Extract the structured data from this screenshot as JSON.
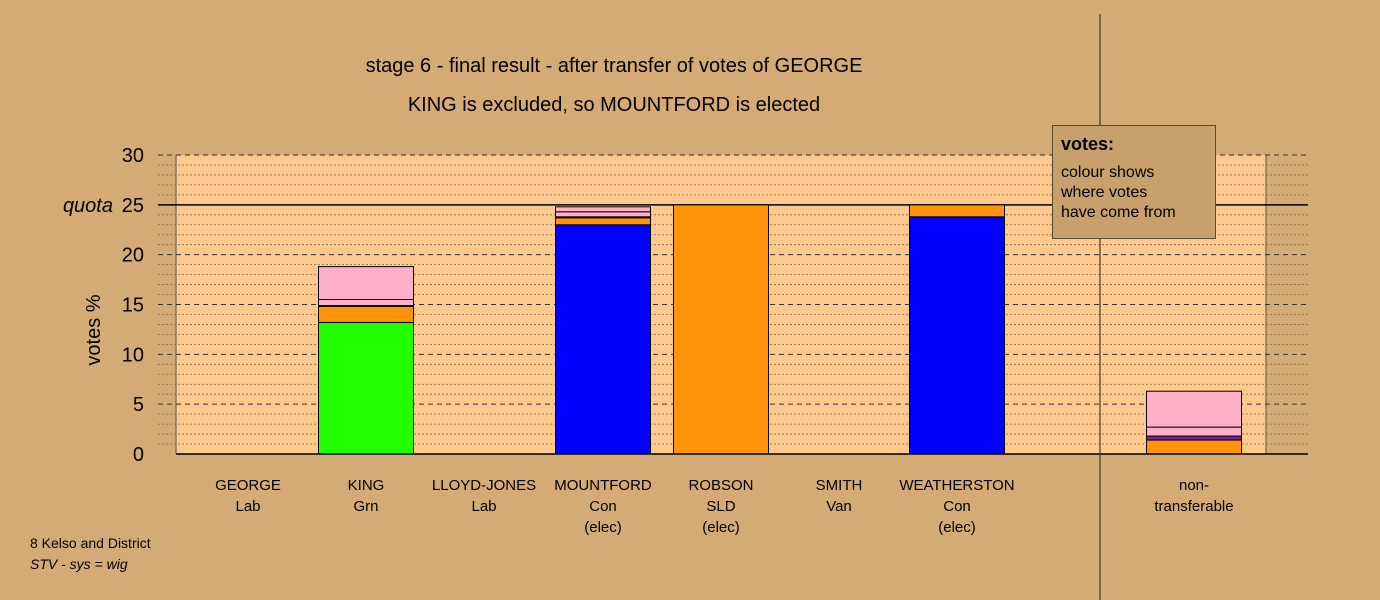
{
  "titles": {
    "line1": "stage 6 - final result - after transfer of votes of GEORGE",
    "line2": "KING is excluded, so MOUNTFORD is elected"
  },
  "legend": {
    "title": "votes:",
    "lines": [
      "colour shows",
      "where votes",
      "have come from"
    ]
  },
  "footer": {
    "ward": "8 Kelso and District",
    "system": "STV - sys = wig"
  },
  "colors": {
    "background": "#d4aa77",
    "plot_area": "#fdc98f",
    "Con": "#0000ff",
    "Grn": "#22ff00",
    "SLD": "#ff9408",
    "Lab": "#ffb0c8",
    "Van": "#7a1fa2"
  },
  "chart_data": {
    "type": "bar",
    "stacked": true,
    "ylabel": "votes %",
    "ylim": [
      0,
      30
    ],
    "yticks": [
      0,
      5,
      10,
      15,
      20,
      25,
      30
    ],
    "quota": {
      "value": 25,
      "label": "quota"
    },
    "grid": true,
    "categories": [
      {
        "name": "GEORGE",
        "party": "Lab",
        "note": ""
      },
      {
        "name": "KING",
        "party": "Grn",
        "note": ""
      },
      {
        "name": "LLOYD-JONES",
        "party": "Lab",
        "note": ""
      },
      {
        "name": "MOUNTFORD",
        "party": "Con",
        "note": "(elec)"
      },
      {
        "name": "ROBSON",
        "party": "SLD",
        "note": "(elec)"
      },
      {
        "name": "SMITH",
        "party": "Van",
        "note": ""
      },
      {
        "name": "WEATHERSTON",
        "party": "Con",
        "note": "(elec)"
      },
      {
        "name": "non-",
        "party": "transferable",
        "note": ""
      }
    ],
    "series": [
      {
        "source": "Con",
        "values": [
          0,
          0,
          0,
          23.0,
          0,
          0,
          23.8,
          0
        ]
      },
      {
        "source": "Grn",
        "values": [
          0,
          13.2,
          0,
          0,
          0,
          0,
          0,
          0
        ]
      },
      {
        "source": "SLD",
        "values": [
          0,
          1.6,
          0,
          0.7,
          25.0,
          0,
          1.2,
          1.4
        ]
      },
      {
        "source": "Van",
        "values": [
          0,
          0.1,
          0,
          0.1,
          0,
          0,
          0,
          0.4
        ]
      },
      {
        "source": "Lab-1",
        "values": [
          0,
          0.6,
          0,
          0.5,
          0,
          0,
          0,
          0.9
        ]
      },
      {
        "source": "Lab-2",
        "values": [
          0,
          3.3,
          0,
          0.5,
          0,
          0,
          0,
          3.6
        ]
      }
    ],
    "segment_colors": {
      "Con": "#0000ff",
      "Grn": "#22ff00",
      "SLD": "#ff9408",
      "Van": "#7a1fa2",
      "Lab-1": "#ffb0c8",
      "Lab-2": "#ffb0c8"
    }
  }
}
